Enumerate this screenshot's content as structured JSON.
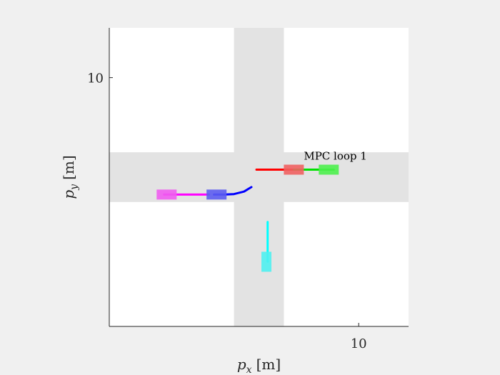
{
  "chart_data": {
    "type": "scatter",
    "title": "",
    "xlabel": {
      "main": "p",
      "sub": "x",
      "unit": "[m]"
    },
    "ylabel": {
      "main": "p",
      "sub": "y",
      "unit": "[m]"
    },
    "xlim": [
      0,
      12
    ],
    "ylim": [
      0,
      12
    ],
    "xticks": [
      10
    ],
    "yticks": [
      10
    ],
    "grid": false,
    "road": {
      "color": "#e3e3e3",
      "vertical_x": [
        5,
        7
      ],
      "horizontal_y": [
        5,
        7
      ]
    },
    "annotation": {
      "text": "MPC loop 1",
      "x": 7.8,
      "y": 6.7
    },
    "vehicles": [
      {
        "name": "",
        "color": "#ff0000",
        "rect_color": "#f06060",
        "x": 7.4,
        "y": 6.3,
        "heading": "horizontal",
        "trajectory": [
          [
            5.9,
            6.3
          ],
          [
            6.4,
            6.3
          ],
          [
            6.9,
            6.3
          ],
          [
            7.4,
            6.3
          ]
        ]
      },
      {
        "name": "",
        "color": "#00e000",
        "rect_color": "#4cf04c",
        "x": 8.8,
        "y": 6.3,
        "heading": "horizontal",
        "trajectory": [
          [
            7.4,
            6.3
          ],
          [
            7.8,
            6.3
          ],
          [
            8.2,
            6.3
          ],
          [
            8.6,
            6.3
          ],
          [
            9.0,
            6.3
          ]
        ]
      },
      {
        "name": "",
        "color": "#ff00ff",
        "rect_color": "#f05cf0",
        "x": 2.3,
        "y": 5.3,
        "heading": "horizontal",
        "trajectory": [
          [
            2.2,
            5.3
          ],
          [
            2.7,
            5.3
          ],
          [
            3.2,
            5.3
          ],
          [
            3.7,
            5.3
          ],
          [
            4.0,
            5.3
          ]
        ]
      },
      {
        "name": "",
        "color": "#0000ff",
        "rect_color": "#5c5cf0",
        "x": 4.3,
        "y": 5.3,
        "heading": "horizontal",
        "trajectory": [
          [
            4.2,
            5.3
          ],
          [
            4.6,
            5.3
          ],
          [
            5.0,
            5.32
          ],
          [
            5.4,
            5.42
          ],
          [
            5.7,
            5.6
          ]
        ]
      },
      {
        "name": "",
        "color": "#00ffff",
        "rect_color": "#4ff0f0",
        "x": 6.3,
        "y": 2.6,
        "heading": "vertical",
        "trajectory": [
          [
            6.35,
            2.6
          ],
          [
            6.35,
            3.1
          ],
          [
            6.35,
            3.6
          ],
          [
            6.35,
            4.2
          ]
        ]
      }
    ]
  }
}
